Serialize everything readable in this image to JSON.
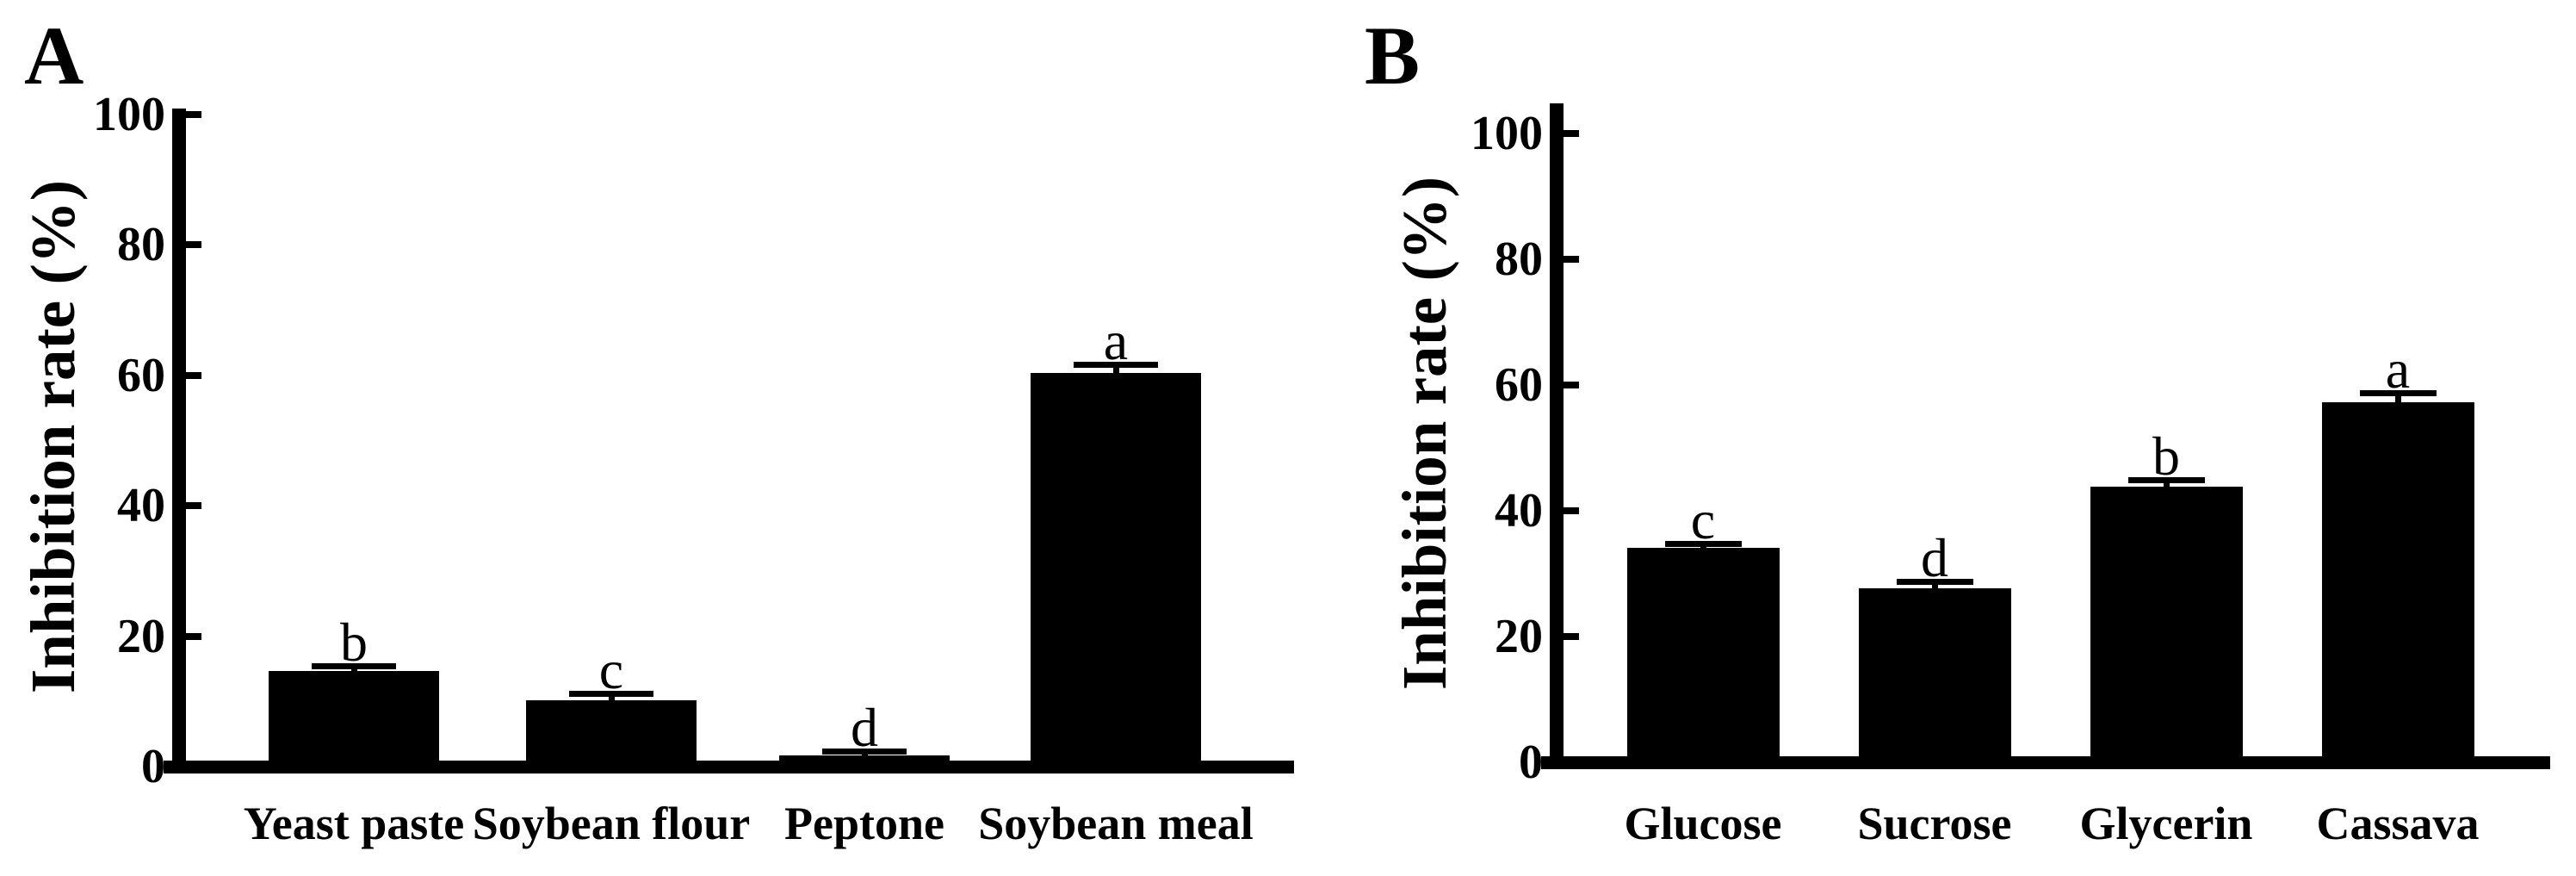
{
  "figure": {
    "background_color": "#ffffff",
    "ink_color": "#000000",
    "description_visible_text_only": "Two-panel bar chart of inhibition rate (%)"
  },
  "chart_data": [
    {
      "type": "bar",
      "panel_label": "A",
      "ylabel": "Inhibition rate (%)",
      "ylim": [
        0,
        100
      ],
      "yticks": [
        0,
        20,
        40,
        60,
        80,
        100
      ],
      "categories": [
        "Yeast paste",
        "Soybean flour",
        "Peptone",
        "Soybean meal"
      ],
      "values": [
        14.7,
        10.2,
        1.7,
        60.4
      ],
      "errors_upper": [
        0.8,
        1.0,
        0.7,
        1.3
      ],
      "significance_letters": [
        "b",
        "c",
        "d",
        "a"
      ],
      "bar_color": "#000000",
      "grid": "off",
      "legend": "none",
      "error_bar_style": "upper, capped"
    },
    {
      "type": "bar",
      "panel_label": "B",
      "ylabel": "Inhibition rate (%)",
      "ylim": [
        0,
        100
      ],
      "yticks": [
        0,
        20,
        40,
        60,
        80,
        100
      ],
      "categories": [
        "Glucose",
        "Sucrose",
        "Glycerin",
        "Cassava"
      ],
      "values": [
        34.1,
        27.7,
        43.8,
        57.2
      ],
      "errors_upper": [
        0.7,
        1.1,
        1.1,
        1.6
      ],
      "significance_letters": [
        "c",
        "d",
        "b",
        "a"
      ],
      "bar_color": "#000000",
      "grid": "off",
      "legend": "none",
      "error_bar_style": "upper, capped"
    }
  ]
}
